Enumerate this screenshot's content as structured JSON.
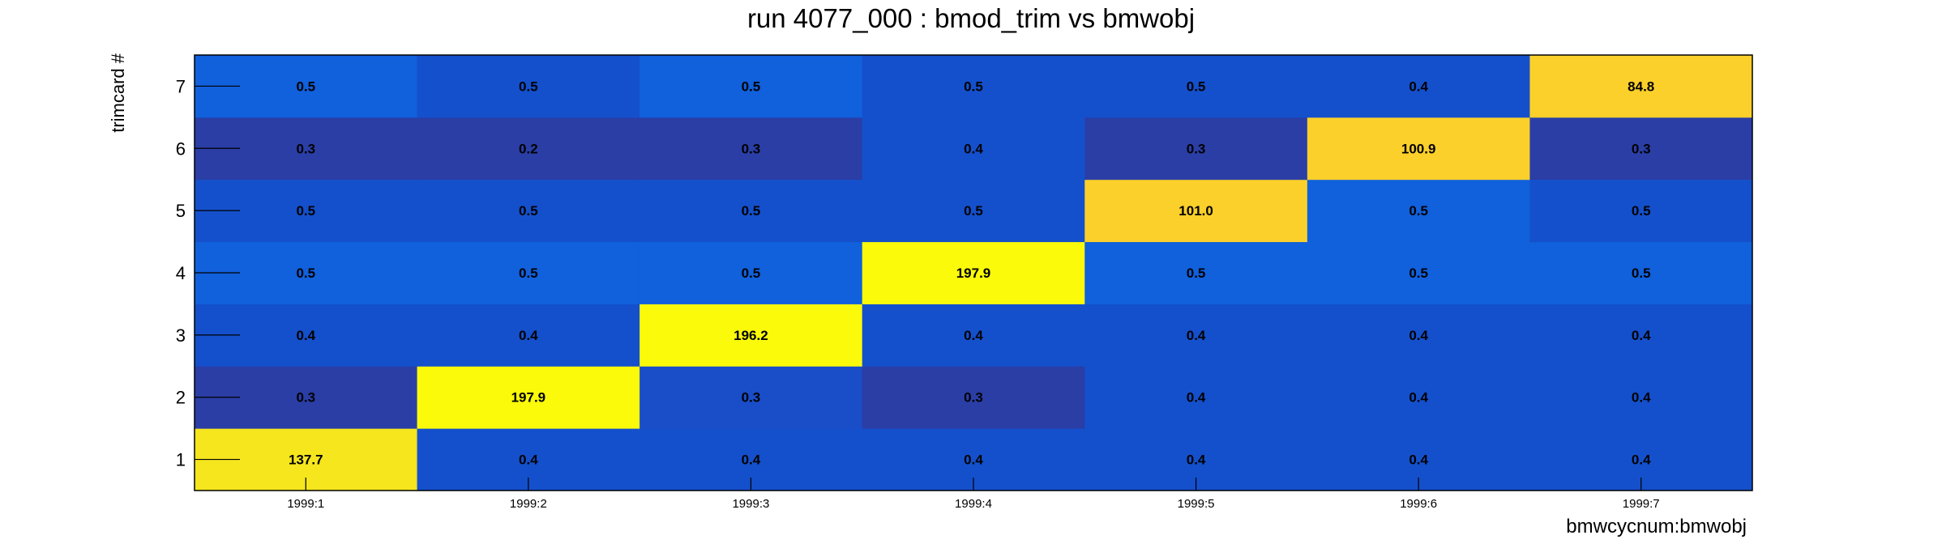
{
  "chart_data": {
    "type": "heatmap",
    "title": "run 4077_000 : bmod_trim vs bmwobj",
    "xlabel": "bmwcycnum:bmwobj",
    "ylabel": "trimcard #",
    "x_categories": [
      "1999:1",
      "1999:2",
      "1999:3",
      "1999:4",
      "1999:5",
      "1999:6",
      "1999:7"
    ],
    "y_categories": [
      "1",
      "2",
      "3",
      "4",
      "5",
      "6",
      "7"
    ],
    "values": [
      [
        137.7,
        0.4,
        0.4,
        0.4,
        0.4,
        0.4,
        0.4
      ],
      [
        0.3,
        197.9,
        0.3,
        0.3,
        0.4,
        0.4,
        0.4
      ],
      [
        0.4,
        0.4,
        196.2,
        0.4,
        0.4,
        0.4,
        0.4
      ],
      [
        0.5,
        0.5,
        0.5,
        197.9,
        0.5,
        0.5,
        0.5
      ],
      [
        0.5,
        0.5,
        0.5,
        0.5,
        101.0,
        0.5,
        0.5
      ],
      [
        0.3,
        0.2,
        0.3,
        0.4,
        0.3,
        100.9,
        0.3
      ],
      [
        0.5,
        0.5,
        0.5,
        0.5,
        0.5,
        0.4,
        84.8
      ]
    ],
    "labels": [
      [
        "137.7",
        "0.4",
        "0.4",
        "0.4",
        "0.4",
        "0.4",
        "0.4"
      ],
      [
        "0.3",
        "197.9",
        "0.3",
        "0.3",
        "0.4",
        "0.4",
        "0.4"
      ],
      [
        "0.4",
        "0.4",
        "196.2",
        "0.4",
        "0.4",
        "0.4",
        "0.4"
      ],
      [
        "0.5",
        "0.5",
        "0.5",
        "197.9",
        "0.5",
        "0.5",
        "0.5"
      ],
      [
        "0.5",
        "0.5",
        "0.5",
        "0.5",
        "101.0",
        "0.5",
        "0.5"
      ],
      [
        "0.3",
        "0.2",
        "0.3",
        "0.4",
        "0.3",
        "100.9",
        "0.3"
      ],
      [
        "0.5",
        "0.5",
        "0.5",
        "0.5",
        "0.5",
        "0.4",
        "84.8"
      ]
    ],
    "cell_colors": [
      [
        "#f5e61e",
        "#1450cc",
        "#1450cc",
        "#1450cc",
        "#1450cc",
        "#1450cc",
        "#1450cc"
      ],
      [
        "#2a3ea6",
        "#fafa0a",
        "#1a4dc8",
        "#2a3ea6",
        "#1450cc",
        "#1450cc",
        "#1450cc"
      ],
      [
        "#1450cc",
        "#1450cc",
        "#fafa0a",
        "#1450cc",
        "#1450cc",
        "#1450cc",
        "#1450cc"
      ],
      [
        "#1160dc",
        "#1160dc",
        "#1160dc",
        "#fafa0a",
        "#1160dc",
        "#1160dc",
        "#1160dc"
      ],
      [
        "#1450cc",
        "#1450cc",
        "#1450cc",
        "#1450cc",
        "#fcd02a",
        "#1160dc",
        "#1450cc"
      ],
      [
        "#2a3ea6",
        "#2a3ea6",
        "#2a3ea6",
        "#1450cc",
        "#2a3ea6",
        "#fcd02a",
        "#2a3ea6"
      ],
      [
        "#1160dc",
        "#1450cc",
        "#1160dc",
        "#1450cc",
        "#1450cc",
        "#1450cc",
        "#fcd02a"
      ]
    ],
    "legend": "none",
    "grid": false
  }
}
